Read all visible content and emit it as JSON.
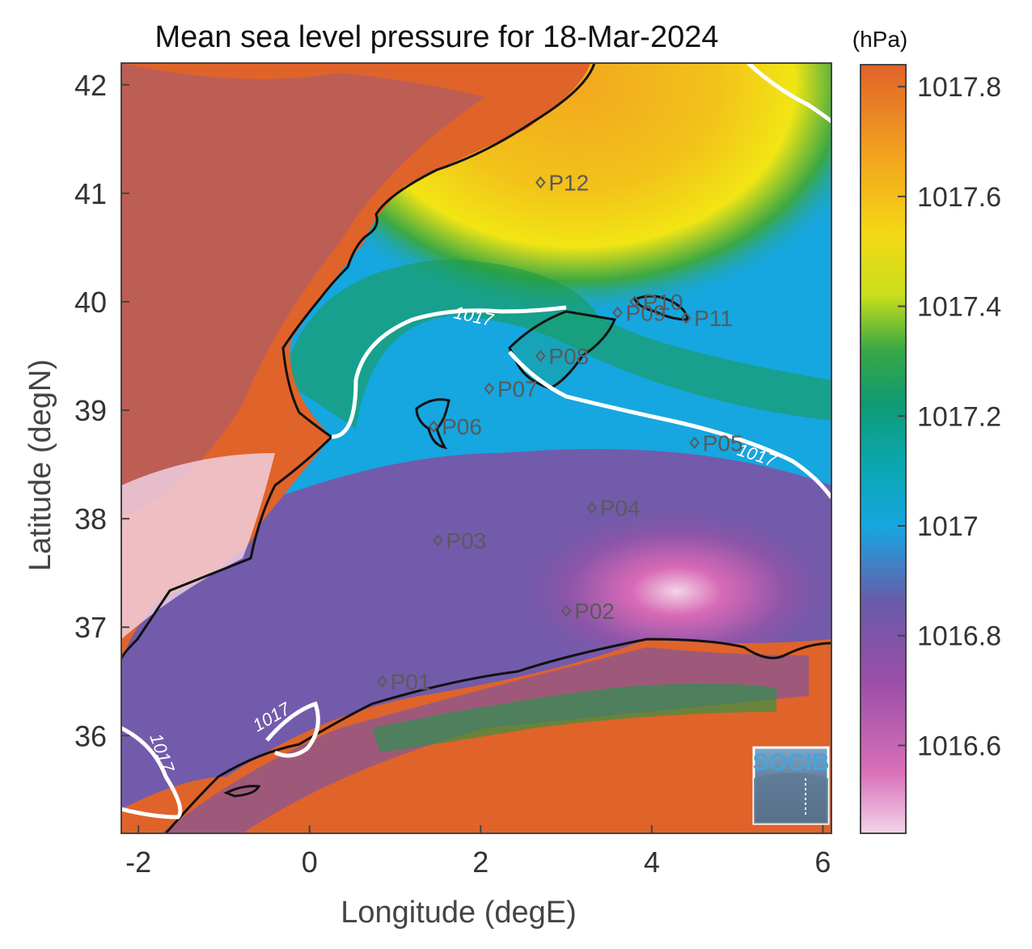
{
  "title": "Mean sea level pressure for 18-Mar-2024",
  "units": "(hPa)",
  "xlabel": "Longitude (degE)",
  "ylabel": "Latitude (degN)",
  "x_ticks": [
    {
      "value": -2,
      "label": "-2"
    },
    {
      "value": 0,
      "label": "0"
    },
    {
      "value": 2,
      "label": "2"
    },
    {
      "value": 4,
      "label": "4"
    },
    {
      "value": 6,
      "label": "6"
    }
  ],
  "y_ticks": [
    {
      "value": 36,
      "label": "36"
    },
    {
      "value": 37,
      "label": "37"
    },
    {
      "value": 38,
      "label": "38"
    },
    {
      "value": 39,
      "label": "39"
    },
    {
      "value": 40,
      "label": "40"
    },
    {
      "value": 41,
      "label": "41"
    },
    {
      "value": 42,
      "label": "42"
    }
  ],
  "xlim": [
    -2.2,
    6.1
  ],
  "ylim": [
    35.1,
    42.2
  ],
  "colorbar": {
    "min": 1016.44,
    "max": 1017.84,
    "ticks": [
      {
        "value": 1016.6,
        "label": "1016.6"
      },
      {
        "value": 1016.8,
        "label": "1016.8"
      },
      {
        "value": 1017.0,
        "label": "1017"
      },
      {
        "value": 1017.2,
        "label": "1017.2"
      },
      {
        "value": 1017.4,
        "label": "1017.4"
      },
      {
        "value": 1017.6,
        "label": "1017.6"
      },
      {
        "value": 1017.8,
        "label": "1017.8"
      }
    ],
    "colors": [
      "#f2d4e8",
      "#cf4fa8",
      "#7b55a6",
      "#16a6e0",
      "#0da694",
      "#1a9a48",
      "#f2e514",
      "#f2a81e",
      "#e0632a"
    ]
  },
  "contour_label": "1017",
  "points": [
    {
      "name": "P01",
      "lon": 0.85,
      "lat": 36.5
    },
    {
      "name": "P02",
      "lon": 3.0,
      "lat": 37.15
    },
    {
      "name": "P03",
      "lon": 1.5,
      "lat": 37.8
    },
    {
      "name": "P04",
      "lon": 3.3,
      "lat": 38.1
    },
    {
      "name": "P05",
      "lon": 4.5,
      "lat": 38.7
    },
    {
      "name": "P06",
      "lon": 1.45,
      "lat": 38.85
    },
    {
      "name": "P07",
      "lon": 2.1,
      "lat": 39.2
    },
    {
      "name": "P08",
      "lon": 2.7,
      "lat": 39.5
    },
    {
      "name": "P09",
      "lon": 3.6,
      "lat": 39.9
    },
    {
      "name": "P10",
      "lon": 3.8,
      "lat": 40.0
    },
    {
      "name": "P11",
      "lon": 4.4,
      "lat": 39.85
    },
    {
      "name": "P12",
      "lon": 2.7,
      "lat": 41.1
    }
  ],
  "logo_text": "SOCIB"
}
